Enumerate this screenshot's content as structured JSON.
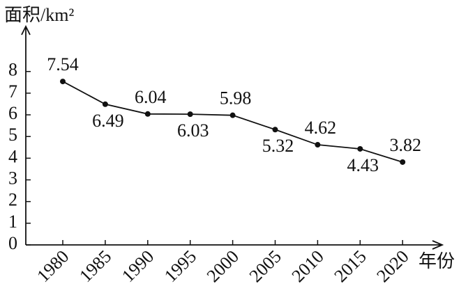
{
  "chart_data": {
    "type": "line",
    "y_label": "面积/km²",
    "x_label": "年份",
    "categories": [
      "1980",
      "1985",
      "1990",
      "1995",
      "2000",
      "2005",
      "2010",
      "2015",
      "2020"
    ],
    "values": [
      7.54,
      6.49,
      6.04,
      6.03,
      5.98,
      5.32,
      4.62,
      4.43,
      3.82
    ],
    "color": "#111111",
    "ylim": [
      0,
      9.5
    ],
    "yticks": [
      0,
      1,
      2,
      3,
      4,
      5,
      6,
      7,
      8
    ],
    "grid": false
  }
}
